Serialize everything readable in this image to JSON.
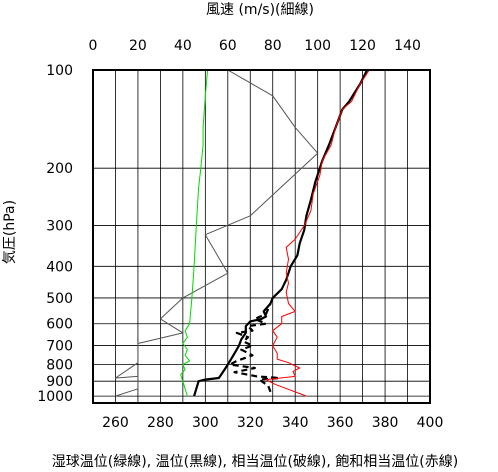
{
  "chart_data": {
    "type": "line",
    "top_axis_label": "風速 (m/s)(細線)",
    "ylabel": "気圧(hPa)",
    "xlabel": "湿球温位(緑線), 温位(黒線), 相当温位(破線), 飽和相当温位(赤線)",
    "top_axis": {
      "range": [
        0,
        150
      ],
      "ticks": [
        0,
        20,
        40,
        60,
        80,
        100,
        120,
        140
      ]
    },
    "bottom_axis": {
      "range": [
        250,
        400
      ],
      "ticks": [
        260,
        280,
        300,
        320,
        340,
        360,
        380,
        400
      ]
    },
    "y_axis": {
      "scale": "log",
      "range": [
        1050,
        100
      ],
      "ticks": [
        100,
        200,
        300,
        400,
        500,
        600,
        700,
        800,
        900,
        1000
      ]
    },
    "grid": true,
    "series": [
      {
        "name": "風速",
        "axis": "top",
        "color": "#555555",
        "style": "thin",
        "points": [
          [
            10,
            1000
          ],
          [
            20,
            950
          ],
          [
            20,
            870
          ],
          [
            10,
            880
          ],
          [
            20,
            790
          ],
          [
            20,
            750
          ],
          [
            20,
            690
          ],
          [
            40,
            640
          ],
          [
            30,
            580
          ],
          [
            40,
            500
          ],
          [
            60,
            420
          ],
          [
            50,
            320
          ],
          [
            70,
            280
          ],
          [
            100,
            180
          ],
          [
            90,
            150
          ],
          [
            80,
            120
          ],
          [
            60,
            100
          ]
        ]
      },
      {
        "name": "湿球温位",
        "axis": "bottom",
        "color": "#00dd00",
        "style": "thin",
        "points": [
          [
            292,
            1000
          ],
          [
            291,
            950
          ],
          [
            290,
            900
          ],
          [
            289,
            860
          ],
          [
            291,
            830
          ],
          [
            290,
            800
          ],
          [
            293,
            780
          ],
          [
            291,
            750
          ],
          [
            292,
            720
          ],
          [
            290,
            690
          ],
          [
            292,
            660
          ],
          [
            291,
            630
          ],
          [
            293,
            600
          ],
          [
            294,
            500
          ],
          [
            295,
            400
          ],
          [
            296,
            300
          ],
          [
            297,
            230
          ],
          [
            298,
            200
          ],
          [
            299,
            170
          ],
          [
            299,
            150
          ],
          [
            300,
            120
          ],
          [
            301,
            100
          ]
        ]
      },
      {
        "name": "温位",
        "axis": "bottom",
        "color": "#000000",
        "style": "thick",
        "points": [
          [
            295,
            1000
          ],
          [
            296,
            950
          ],
          [
            297,
            900
          ],
          [
            300,
            890
          ],
          [
            306,
            880
          ],
          [
            307,
            860
          ],
          [
            309,
            820
          ],
          [
            311,
            780
          ],
          [
            313,
            740
          ],
          [
            315,
            700
          ],
          [
            316,
            670
          ],
          [
            318,
            640
          ],
          [
            318,
            610
          ],
          [
            320,
            590
          ],
          [
            325,
            580
          ],
          [
            327,
            570
          ],
          [
            326,
            550
          ],
          [
            329,
            520
          ],
          [
            330,
            500
          ],
          [
            334,
            470
          ],
          [
            336,
            440
          ],
          [
            338,
            400
          ],
          [
            341,
            370
          ],
          [
            342,
            340
          ],
          [
            344,
            310
          ],
          [
            345,
            280
          ],
          [
            347,
            250
          ],
          [
            349,
            220
          ],
          [
            352,
            190
          ],
          [
            355,
            170
          ],
          [
            358,
            150
          ],
          [
            361,
            132
          ],
          [
            364,
            125
          ],
          [
            369,
            110
          ],
          [
            372,
            100
          ]
        ]
      },
      {
        "name": "相当温位",
        "axis": "bottom",
        "color": "#000000",
        "style": "dashed",
        "points": [
          [
            329,
            970
          ],
          [
            328,
            930
          ],
          [
            324,
            890
          ],
          [
            333,
            880
          ],
          [
            323,
            870
          ],
          [
            313,
            845
          ],
          [
            322,
            820
          ],
          [
            311,
            800
          ],
          [
            314,
            780
          ],
          [
            321,
            750
          ],
          [
            316,
            720
          ],
          [
            321,
            700
          ],
          [
            317,
            680
          ],
          [
            319,
            660
          ],
          [
            314,
            640
          ],
          [
            321,
            630
          ],
          [
            319,
            610
          ],
          [
            327,
            600
          ],
          [
            322,
            580
          ],
          [
            327,
            560
          ],
          [
            329,
            520
          ]
        ]
      },
      {
        "name": "飽和相当温位",
        "axis": "bottom",
        "color": "#ff0000",
        "style": "thin",
        "points": [
          [
            345,
            1000
          ],
          [
            331,
            920
          ],
          [
            327,
            890
          ],
          [
            340,
            870
          ],
          [
            339,
            840
          ],
          [
            342,
            820
          ],
          [
            337,
            790
          ],
          [
            332,
            770
          ],
          [
            332,
            740
          ],
          [
            330,
            700
          ],
          [
            332,
            660
          ],
          [
            330,
            630
          ],
          [
            334,
            600
          ],
          [
            334,
            570
          ],
          [
            340,
            550
          ],
          [
            337,
            520
          ],
          [
            336,
            480
          ],
          [
            337,
            450
          ],
          [
            336,
            420
          ],
          [
            337,
            380
          ],
          [
            336,
            350
          ],
          [
            340,
            330
          ],
          [
            344,
            300
          ],
          [
            347,
            270
          ],
          [
            348,
            240
          ],
          [
            351,
            210
          ],
          [
            352,
            190
          ],
          [
            356,
            170
          ],
          [
            358,
            150
          ],
          [
            361,
            132
          ],
          [
            365,
            125
          ],
          [
            369,
            110
          ],
          [
            373,
            100
          ]
        ]
      }
    ]
  }
}
